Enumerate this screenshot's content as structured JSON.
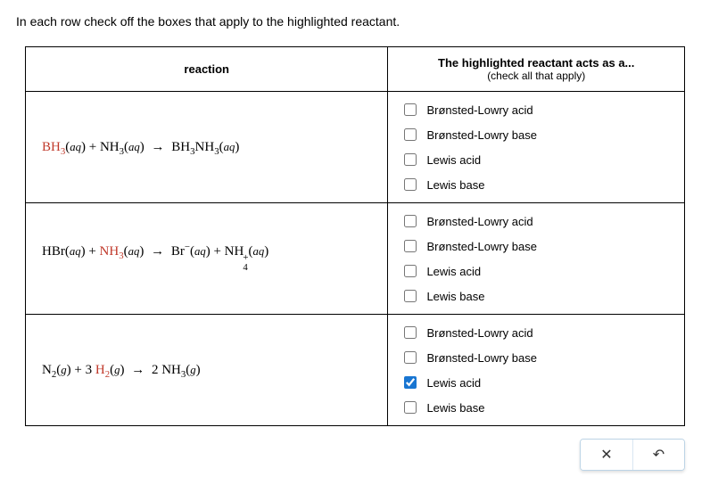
{
  "instruction": "In each row check off the boxes that apply to the highlighted reactant.",
  "headers": {
    "reaction": "reaction",
    "acts_title": "The highlighted reactant acts as a...",
    "acts_sub": "(check all that apply)"
  },
  "option_labels": {
    "bl_acid": "Brønsted-Lowry acid",
    "bl_base": "Brønsted-Lowry base",
    "lewis_acid": "Lewis acid",
    "lewis_base": "Lewis base"
  },
  "rows": [
    {
      "reaction_html": "<span class='hl'>BH<span class='sub'>3</span></span>(<span class='state'>aq</span>) + NH<span class='sub'>3</span>(<span class='state'>aq</span>) <span class='arrow'>→</span> BH<span class='sub'>3</span>NH<span class='sub'>3</span>(<span class='state'>aq</span>)",
      "checked": {
        "bl_acid": false,
        "bl_base": false,
        "lewis_acid": false,
        "lewis_base": false
      }
    },
    {
      "reaction_html": "HBr(<span class='state'>aq</span>) + <span class='hl'>NH<span class='sub'>3</span></span>(<span class='state'>aq</span>) <span class='arrow'>→</span> Br<span class='sup'>−</span>(<span class='state'>aq</span>) + NH<span class='supsub'><span>+</span><span>4</span></span>(<span class='state'>aq</span>)",
      "checked": {
        "bl_acid": false,
        "bl_base": false,
        "lewis_acid": false,
        "lewis_base": false
      }
    },
    {
      "reaction_html": "N<span class='sub'>2</span>(<span class='state'>g</span>) + 3 <span class='hl'>H<span class='sub'>2</span></span>(<span class='state'>g</span>) <span class='arrow'>→</span> 2 NH<span class='sub'>3</span>(<span class='state'>g</span>)",
      "checked": {
        "bl_acid": false,
        "bl_base": false,
        "lewis_acid": true,
        "lewis_base": false
      }
    }
  ],
  "buttons": {
    "close_icon": "✕",
    "reset_icon": "↶"
  }
}
